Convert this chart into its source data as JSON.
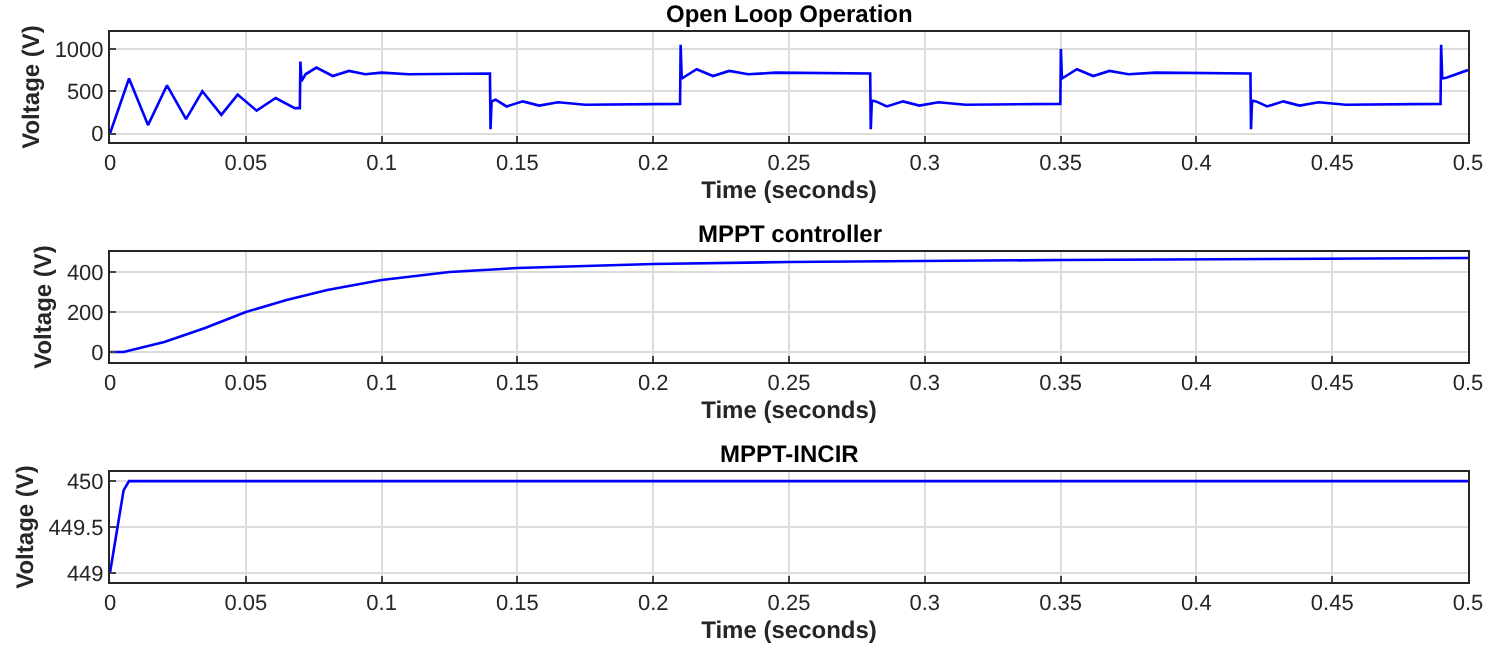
{
  "chart_data": [
    {
      "type": "line",
      "title": "Open Loop Operation",
      "xlabel": "Time (seconds)",
      "ylabel": "Voltage (V)",
      "grid": true,
      "xlim": [
        0,
        0.5
      ],
      "xticks": [
        0,
        0.05,
        0.1,
        0.15,
        0.2,
        0.25,
        0.3,
        0.35,
        0.4,
        0.45,
        0.5
      ],
      "ylim": [
        -100,
        1200
      ],
      "yticks": [
        0,
        500,
        1000
      ],
      "series": [
        {
          "color": "#0000ff",
          "x": [
            0,
            0.007,
            0.014,
            0.021,
            0.028,
            0.034,
            0.041,
            0.047,
            0.054,
            0.061,
            0.068,
            0.0699,
            0.0701,
            0.0705,
            0.072,
            0.076,
            0.082,
            0.088,
            0.094,
            0.1,
            0.11,
            0.1399,
            0.1401,
            0.1405,
            0.142,
            0.146,
            0.152,
            0.158,
            0.165,
            0.175,
            0.2099,
            0.2101,
            0.2105,
            0.212,
            0.216,
            0.222,
            0.228,
            0.235,
            0.245,
            0.2799,
            0.2801,
            0.2805,
            0.282,
            0.286,
            0.292,
            0.298,
            0.305,
            0.315,
            0.3499,
            0.3501,
            0.3505,
            0.352,
            0.356,
            0.362,
            0.368,
            0.375,
            0.385,
            0.4199,
            0.4201,
            0.4205,
            0.422,
            0.426,
            0.432,
            0.438,
            0.445,
            0.455,
            0.4899,
            0.4901,
            0.4905,
            0.492,
            0.5
          ],
          "values": [
            0,
            650,
            100,
            570,
            170,
            500,
            220,
            460,
            270,
            420,
            300,
            300,
            850,
            620,
            700,
            780,
            680,
            740,
            700,
            720,
            700,
            710,
            50,
            380,
            400,
            320,
            380,
            330,
            370,
            340,
            350,
            1050,
            650,
            680,
            760,
            680,
            740,
            700,
            720,
            710,
            50,
            390,
            380,
            320,
            380,
            330,
            370,
            340,
            350,
            1000,
            650,
            680,
            760,
            680,
            740,
            700,
            720,
            710,
            50,
            390,
            380,
            320,
            380,
            330,
            370,
            340,
            350,
            1050,
            650,
            660,
            750
          ]
        }
      ]
    },
    {
      "type": "line",
      "title": "MPPT controller",
      "xlabel": "Time (seconds)",
      "ylabel": "Voltage (V)",
      "grid": true,
      "xlim": [
        0,
        0.5
      ],
      "xticks": [
        0,
        0.05,
        0.1,
        0.15,
        0.2,
        0.25,
        0.3,
        0.35,
        0.4,
        0.45,
        0.5
      ],
      "ylim": [
        -50,
        500
      ],
      "yticks": [
        0,
        200,
        400
      ],
      "series": [
        {
          "color": "#0000ff",
          "x": [
            0,
            0.005,
            0.02,
            0.035,
            0.05,
            0.065,
            0.08,
            0.1,
            0.125,
            0.15,
            0.2,
            0.25,
            0.35,
            0.5
          ],
          "values": [
            0,
            0,
            50,
            120,
            200,
            260,
            310,
            360,
            400,
            420,
            440,
            450,
            460,
            470
          ]
        }
      ]
    },
    {
      "type": "line",
      "title": "MPPT-INCIR",
      "xlabel": "Time (seconds)",
      "ylabel": "Voltage (V)",
      "grid": true,
      "xlim": [
        0,
        0.5
      ],
      "xticks": [
        0,
        0.05,
        0.1,
        0.15,
        0.2,
        0.25,
        0.3,
        0.35,
        0.4,
        0.45,
        0.5
      ],
      "ylim": [
        448.9,
        450.1
      ],
      "yticks": [
        449,
        449.5,
        450
      ],
      "series": [
        {
          "color": "#0000ff",
          "x": [
            0,
            0.005,
            0.007,
            0.5
          ],
          "values": [
            449,
            449.9,
            450,
            450
          ]
        }
      ]
    }
  ]
}
